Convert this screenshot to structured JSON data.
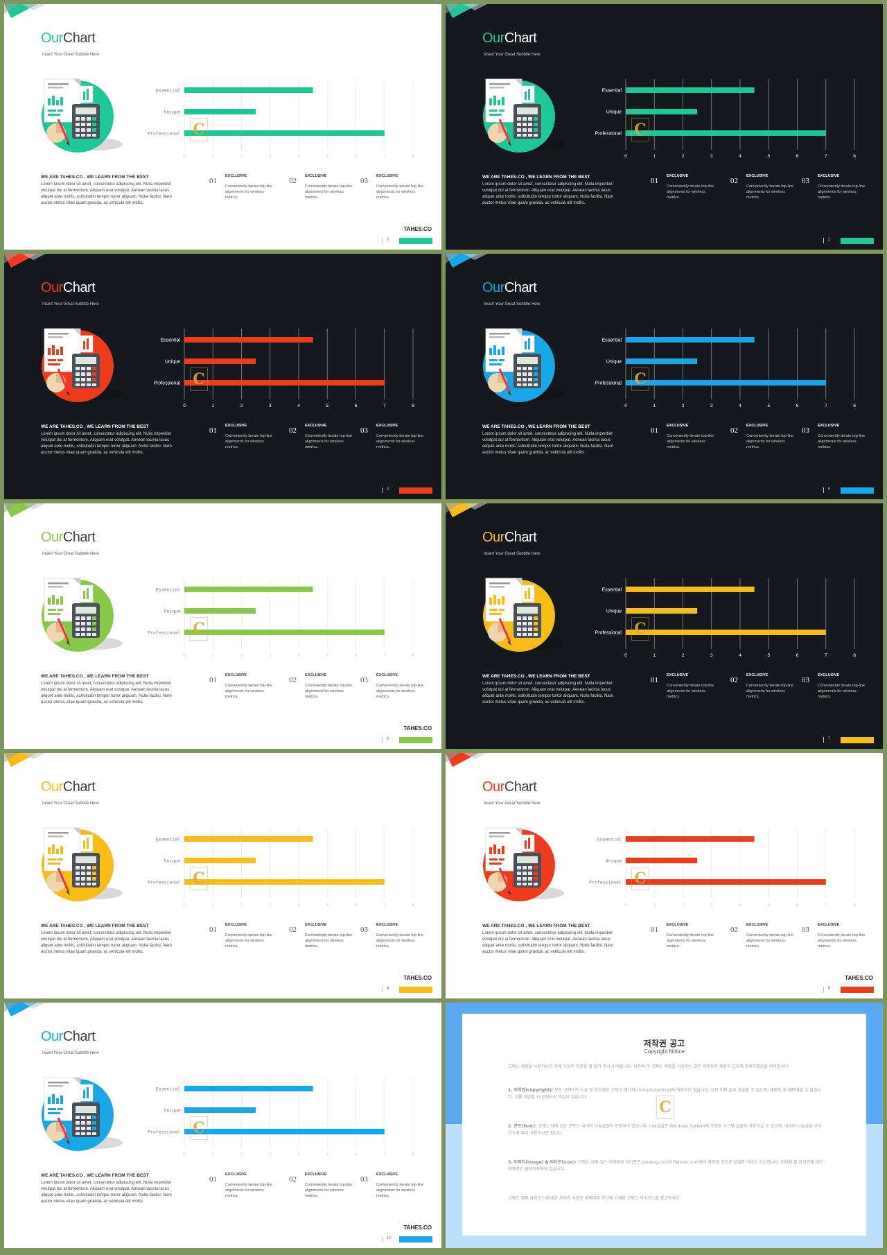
{
  "slides": [
    {
      "theme": "light",
      "accent": "#1fc796",
      "page": "2",
      "brand": "TAHES.CO"
    },
    {
      "theme": "dark",
      "accent": "#1fc796",
      "page": "3",
      "brand": ""
    },
    {
      "theme": "dark",
      "accent": "#ee3a1d",
      "page": "4",
      "brand": ""
    },
    {
      "theme": "dark",
      "accent": "#18a7e6",
      "page": "5",
      "brand": ""
    },
    {
      "theme": "light",
      "accent": "#88c94a",
      "page": "6",
      "brand": "TAHES.CO"
    },
    {
      "theme": "dark",
      "accent": "#f7bc16",
      "page": "7",
      "brand": ""
    },
    {
      "theme": "light",
      "accent": "#f7bc16",
      "page": "8",
      "brand": "TAHES.CO"
    },
    {
      "theme": "light",
      "accent": "#ee3a1d",
      "page": "9",
      "brand": "TAHES.CO"
    },
    {
      "theme": "light",
      "accent": "#18a7e6",
      "page": "10",
      "brand": "TAHES.CO"
    }
  ],
  "template": {
    "title_our": "Our",
    "title_chart": "Chart",
    "subtitle": "Insert Your Great Subtitle Here",
    "about_title": "WE ARE TAHES.CO ,  WE LEARN FROM THE BEST",
    "about_body": "Lorem ipsum dolor sit amet, consectetur adipiscing elit. Nulla imperdiet volutpat dui at fermentum. Aliquam erat volutpat. Aenean lacinia lacus aliquet ante mollis, sollicitudin tempor tortor aliquam. Nulla facilisi.  Nam auctor metus vitae quam gravida, ac vehicula elit mollis.",
    "features": [
      {
        "num": "01",
        "title": "EXCLUSIVE",
        "desc": "Conveniently iterate top-line alignments for wireless  metrics."
      },
      {
        "num": "02",
        "title": "EXCLUSIVE",
        "desc": "Conveniently iterate top-line alignments for wireless  metrics."
      },
      {
        "num": "03",
        "title": "EXCLUSIVE",
        "desc": "Conveniently iterate top-line alignments for wireless  metrics."
      }
    ],
    "watermark": "C"
  },
  "chart_data": {
    "type": "bar",
    "orientation": "horizontal",
    "categories": [
      "Essential",
      "Unique",
      "Professional"
    ],
    "values": [
      4.5,
      2.5,
      7
    ],
    "xlim": [
      0,
      8
    ],
    "ticks": [
      "0",
      "1",
      "2",
      "3",
      "4",
      "5",
      "6",
      "7",
      "8"
    ],
    "grid": true
  },
  "copyright": {
    "title": "저작권 공고",
    "subtitle": "Copyright Notice",
    "intro": "고해스 제품을 사용하시기 전에 다음의 약관을 잘 읽어 주시기 바랍니다. 위하여 이 고해스 제품을 사용하는 것은 이용자가 제품의 모두에 동의하였음을 의미합니다.",
    "p1_head": "1. 저작권(copyright):",
    "p1_body": "모든 고해스의 소유 및 저작권은 고해스 에너지(contentsfactory)에 귀속되어 있습니다. 사전 허락 없이 공유할 수 있으며, 재배포 및 재판매할 수 없습니다. 이를 위반할 시 민형사상 책임이 있습니다.",
    "p2_head": "2. 폰트(font):",
    "p2_body": "고해스 내에 있는 폰트는 네이버 나눔글꼴이 포함되어 있습니다. 나눔글꼴은 Windows System에 포함된 시스템 글꼴로 사용하실 수 있으며, 네이버 나눔글꼴 라이선스에 따라 사용하시면 됩니다.",
    "p3_head": "3. 이미지(image) & 아이콘(icon):",
    "p3_body": "고해스 내에 있는 이미지와 아이콘은 pixabay.com과 flaticon.com에서 제공한 것으로 상업적 이용이 가능합니다. 이미지 및 아이콘에 대한 저작권은 원저작자에게 있습니다.",
    "outro": "고해스 제품 라이선스에 대한 자세한 사항은 홈페이지 하단에 기재된 고해스 라이선스를 참고하세요."
  }
}
